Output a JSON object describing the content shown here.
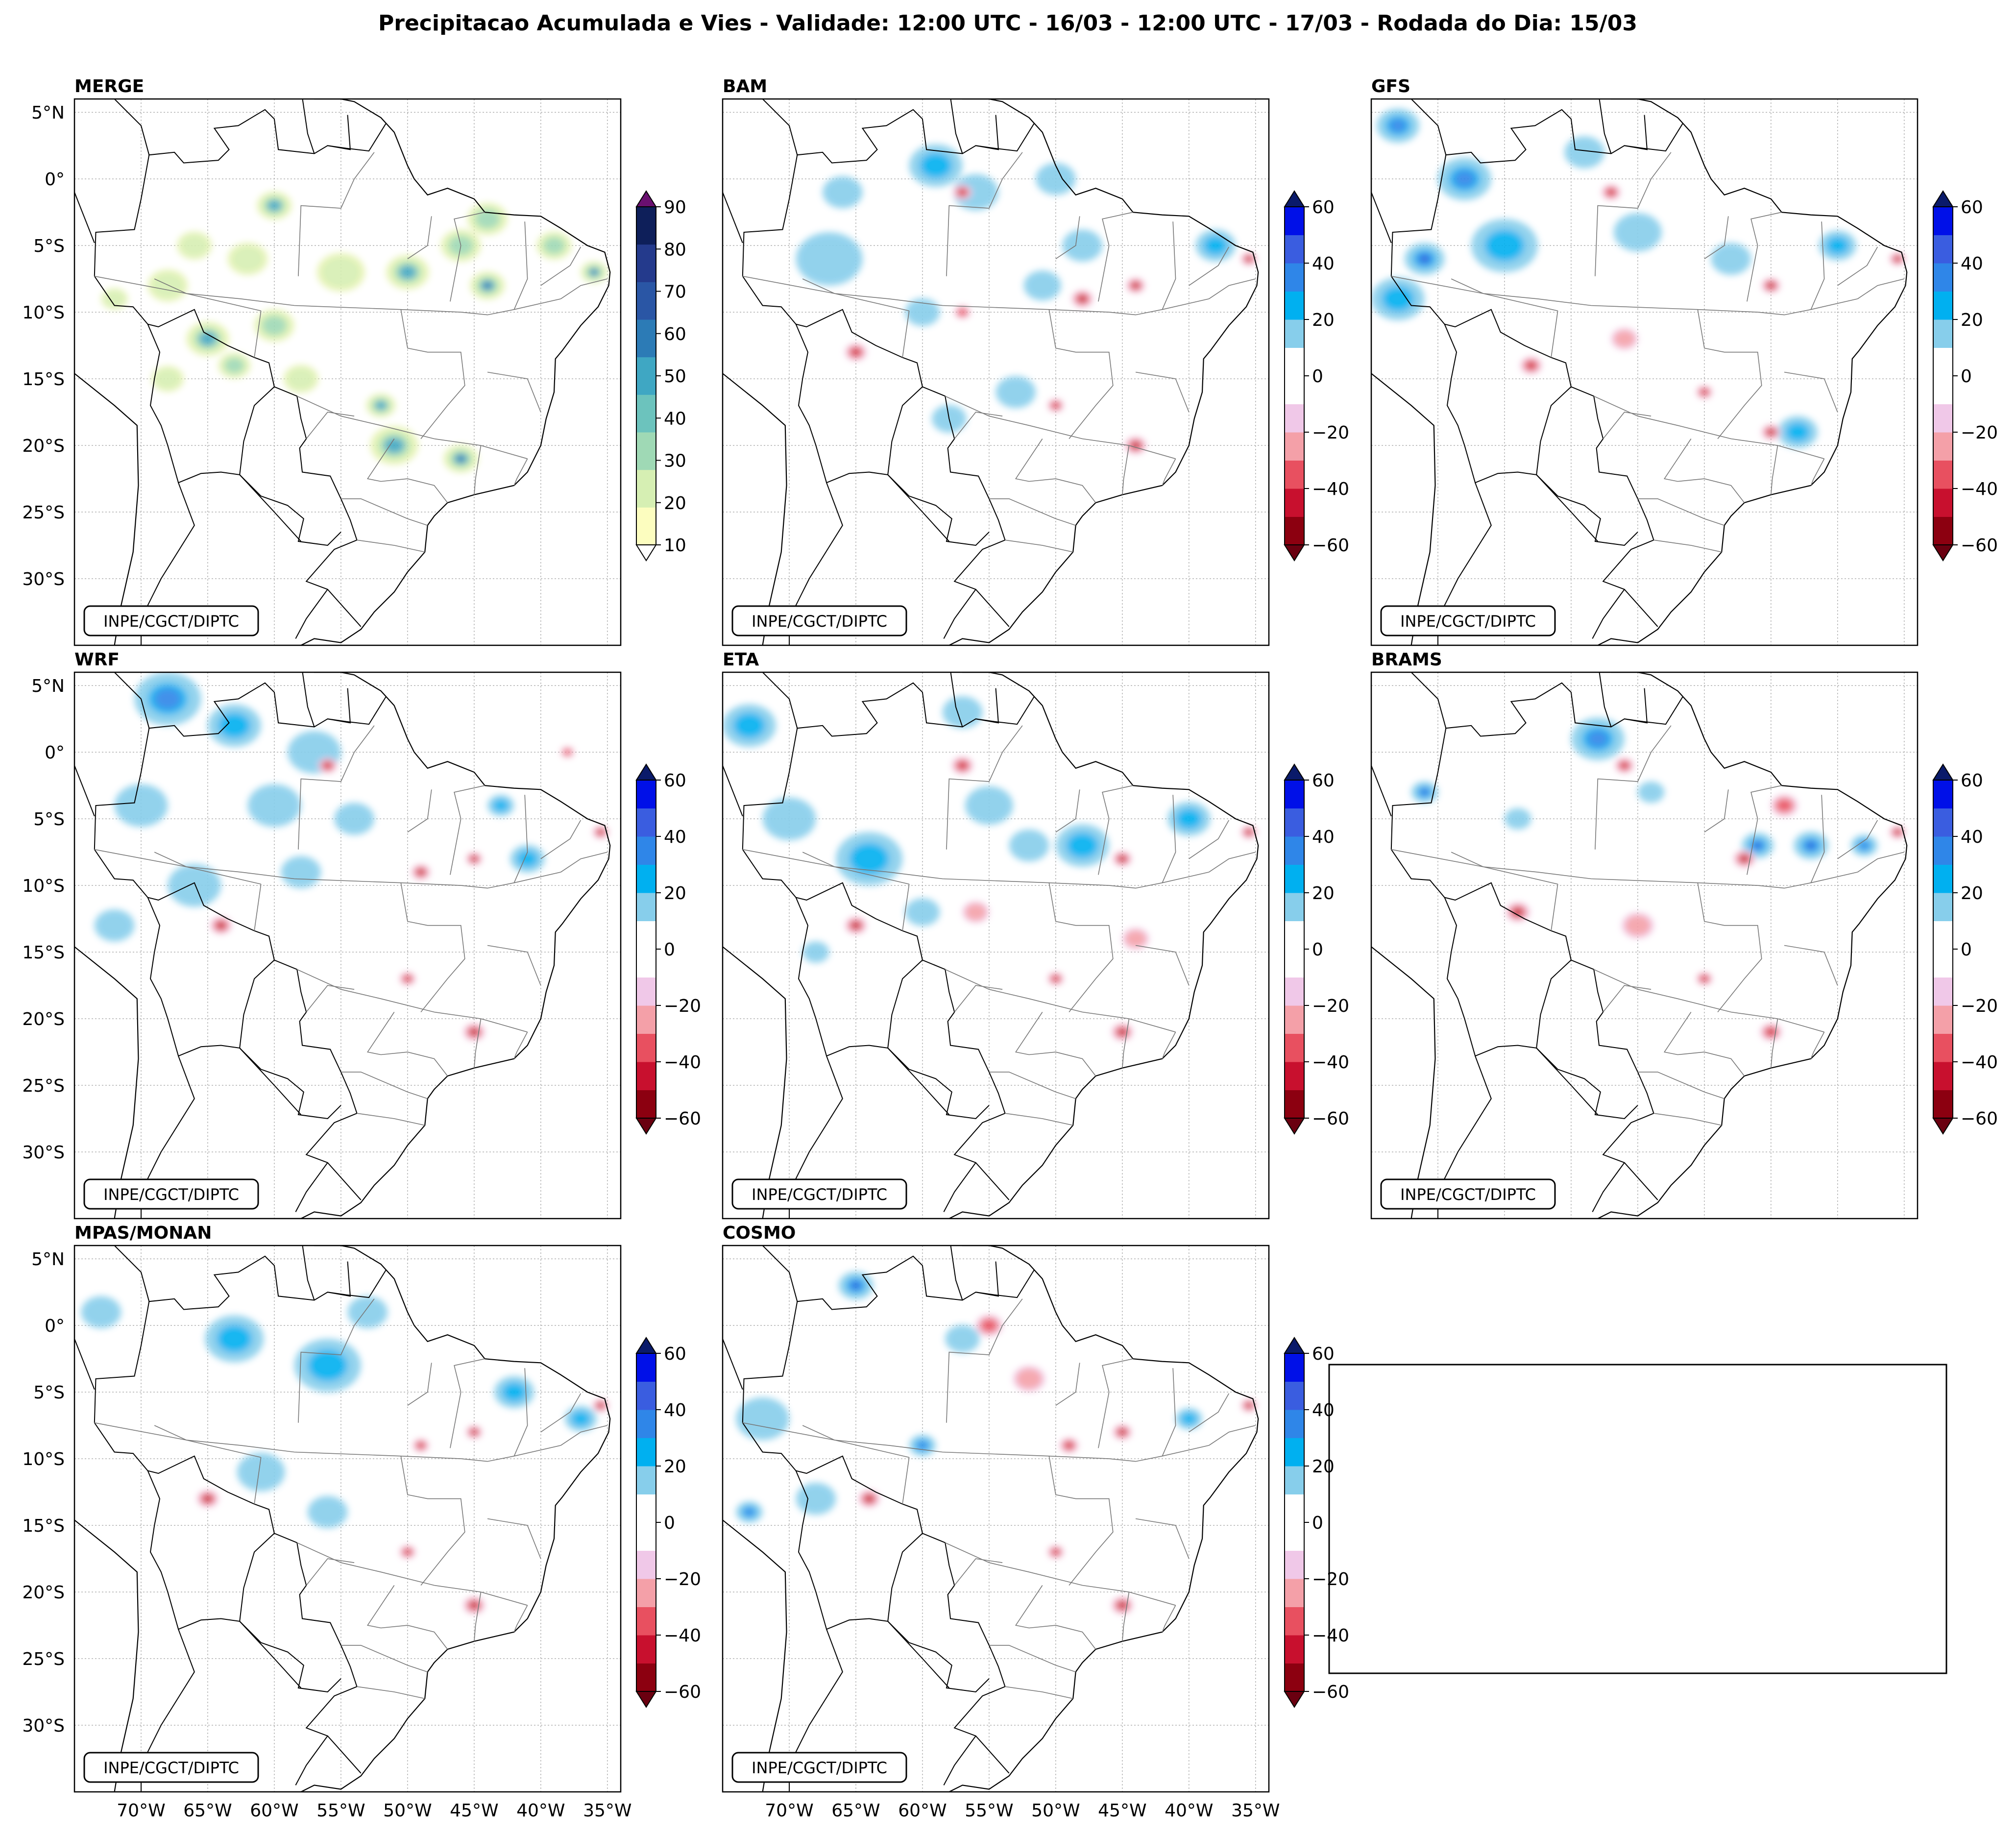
{
  "title": "Precipitacao Acumulada e Vies - Validade: 12:00 UTC - 16/03 - 12:00 UTC - 17/03 - Rodada do Dia: 15/03",
  "credit": "INPE/CGCT/DIPTC",
  "lat_labels": [
    "5°N",
    "0°",
    "5°S",
    "10°S",
    "15°S",
    "20°S",
    "25°S",
    "30°S"
  ],
  "lon_labels": [
    "70°W",
    "65°W",
    "60°W",
    "55°W",
    "50°W",
    "45°W",
    "40°W",
    "35°W"
  ],
  "extent": {
    "lon_min": -75,
    "lon_max": -34,
    "lat_min": -35,
    "lat_max": 6
  },
  "panels": [
    {
      "name": "MERGE",
      "kind": "precip"
    },
    {
      "name": "BAM",
      "kind": "bias"
    },
    {
      "name": "GFS",
      "kind": "bias"
    },
    {
      "name": "WRF",
      "kind": "bias"
    },
    {
      "name": "ETA",
      "kind": "bias"
    },
    {
      "name": "BRAMS",
      "kind": "bias"
    },
    {
      "name": "MPAS/MONAN",
      "kind": "bias"
    },
    {
      "name": "COSMO",
      "kind": "bias"
    }
  ],
  "precip_colorbar": {
    "ticks": [
      "90",
      "80",
      "70",
      "60",
      "50",
      "40",
      "30",
      "20",
      "10"
    ],
    "colors": [
      "#fcfdbf",
      "#d6efb3",
      "#9fd9b5",
      "#6cc3bd",
      "#3fa7c3",
      "#2c7bb6",
      "#2a56a5",
      "#243a8c",
      "#0e1f5a"
    ],
    "over_color": "#6a1070",
    "under_color": "#ffffff"
  },
  "bias_colorbar": {
    "ticks": [
      "60",
      "40",
      "20",
      "0",
      "−20",
      "−40",
      "−60"
    ],
    "colors": [
      "#8c0010",
      "#c8102e",
      "#e85060",
      "#f4a0a8",
      "#f0c8e8",
      "#ffffff",
      "#ffffff",
      "#87ceeb",
      "#00b0f0",
      "#2f86e8",
      "#3a5de0",
      "#0010e8"
    ],
    "over_color": "#0a1a6a",
    "under_color": "#6a0010"
  },
  "colors": {
    "coast": "#000000",
    "states": "#777777",
    "grid": "#b0b0b0"
  }
}
